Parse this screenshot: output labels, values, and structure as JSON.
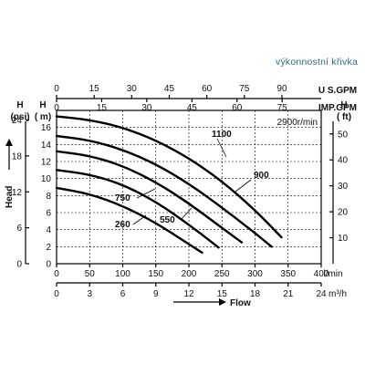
{
  "caption": "výkonnostní křivka",
  "chart_data": {
    "type": "line",
    "speed_label": "2900r/min",
    "x_axis": {
      "label": "Flow",
      "lmin": {
        "unit": "l/min",
        "ticks": [
          0,
          50,
          100,
          150,
          200,
          250,
          300,
          350,
          400
        ],
        "lim": [
          0,
          400
        ]
      },
      "m3h": {
        "unit": "m³/h",
        "ticks": [
          0,
          3,
          6,
          9,
          12,
          15,
          18,
          21,
          24
        ]
      },
      "usgpm": {
        "unit": "U S.GPM",
        "ticks": [
          0,
          15,
          30,
          45,
          60,
          75,
          90
        ]
      },
      "impgpm": {
        "unit": "IMP.GPM",
        "ticks": [
          0,
          15,
          30,
          45,
          60,
          75
        ]
      }
    },
    "y_axis": {
      "label": "Head",
      "m": {
        "unit": "( m)",
        "header": "H",
        "ticks": [
          0,
          2,
          4,
          6,
          8,
          10,
          12,
          14,
          16
        ],
        "lim": [
          0,
          18
        ]
      },
      "psi": {
        "unit": "(psi)",
        "header": "H",
        "ticks": [
          0,
          6,
          12,
          18,
          24
        ]
      },
      "ft": {
        "unit": "( ft)",
        "header": "H",
        "ticks": [
          10,
          20,
          30,
          40,
          50
        ]
      }
    },
    "series": [
      {
        "name": "1100",
        "x": [
          0,
          50,
          100,
          150,
          200,
          250,
          300,
          340
        ],
        "y": [
          17.3,
          16.9,
          16.0,
          14.5,
          12.4,
          9.7,
          6.3,
          3.1
        ]
      },
      {
        "name": "900",
        "x": [
          0,
          50,
          100,
          150,
          200,
          250,
          300,
          325
        ],
        "y": [
          15.0,
          14.5,
          13.4,
          11.7,
          9.4,
          6.6,
          3.6,
          2.0
        ]
      },
      {
        "name": "750",
        "x": [
          0,
          50,
          100,
          150,
          200,
          250,
          280
        ],
        "y": [
          13.2,
          12.7,
          11.5,
          9.6,
          7.1,
          4.2,
          2.5
        ]
      },
      {
        "name": "550",
        "x": [
          0,
          50,
          100,
          150,
          200,
          245
        ],
        "y": [
          11.0,
          10.5,
          9.3,
          7.3,
          4.6,
          1.9
        ]
      },
      {
        "name": "260",
        "x": [
          0,
          50,
          100,
          150,
          200,
          220
        ],
        "y": [
          8.9,
          8.2,
          6.8,
          4.8,
          2.3,
          1.3
        ]
      }
    ]
  }
}
